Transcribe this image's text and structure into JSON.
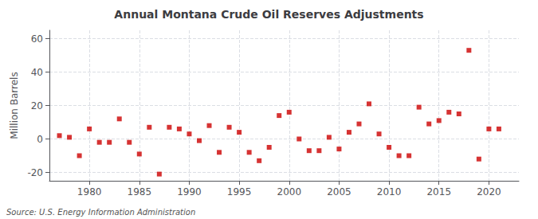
{
  "chart_data": {
    "type": "scatter",
    "title": "Annual Montana Crude Oil Reserves Adjustments",
    "ylabel": "Million Barrels",
    "annotations": [
      "Source: U.S. Energy Information Administration"
    ],
    "x": [
      1977,
      1978,
      1979,
      1980,
      1981,
      1982,
      1983,
      1984,
      1985,
      1986,
      1987,
      1988,
      1989,
      1990,
      1991,
      1992,
      1993,
      1994,
      1995,
      1996,
      1997,
      1998,
      1999,
      2000,
      2001,
      2002,
      2003,
      2004,
      2005,
      2006,
      2007,
      2008,
      2009,
      2010,
      2011,
      2012,
      2013,
      2014,
      2015,
      2016,
      2017,
      2018,
      2019,
      2020,
      2021
    ],
    "values": [
      2,
      1,
      -10,
      6,
      -2,
      -2,
      12,
      -2,
      -9,
      7,
      -21,
      7,
      6,
      3,
      -1,
      8,
      -8,
      7,
      4,
      -8,
      -13,
      -5,
      14,
      16,
      0,
      -7,
      -7,
      1,
      -6,
      4,
      9,
      21,
      3,
      -5,
      -10,
      -10,
      19,
      9,
      11,
      16,
      15,
      53,
      -12,
      6,
      6
    ],
    "color": "#cc0000",
    "marker": "square",
    "xlim": [
      1976,
      2023
    ],
    "xticks": [
      1980,
      1985,
      1990,
      1995,
      2000,
      2005,
      2010,
      2015,
      2020
    ],
    "ylim": [
      -25,
      65
    ],
    "yticks": [
      -20,
      0,
      20,
      40,
      60
    ],
    "grid": true
  }
}
